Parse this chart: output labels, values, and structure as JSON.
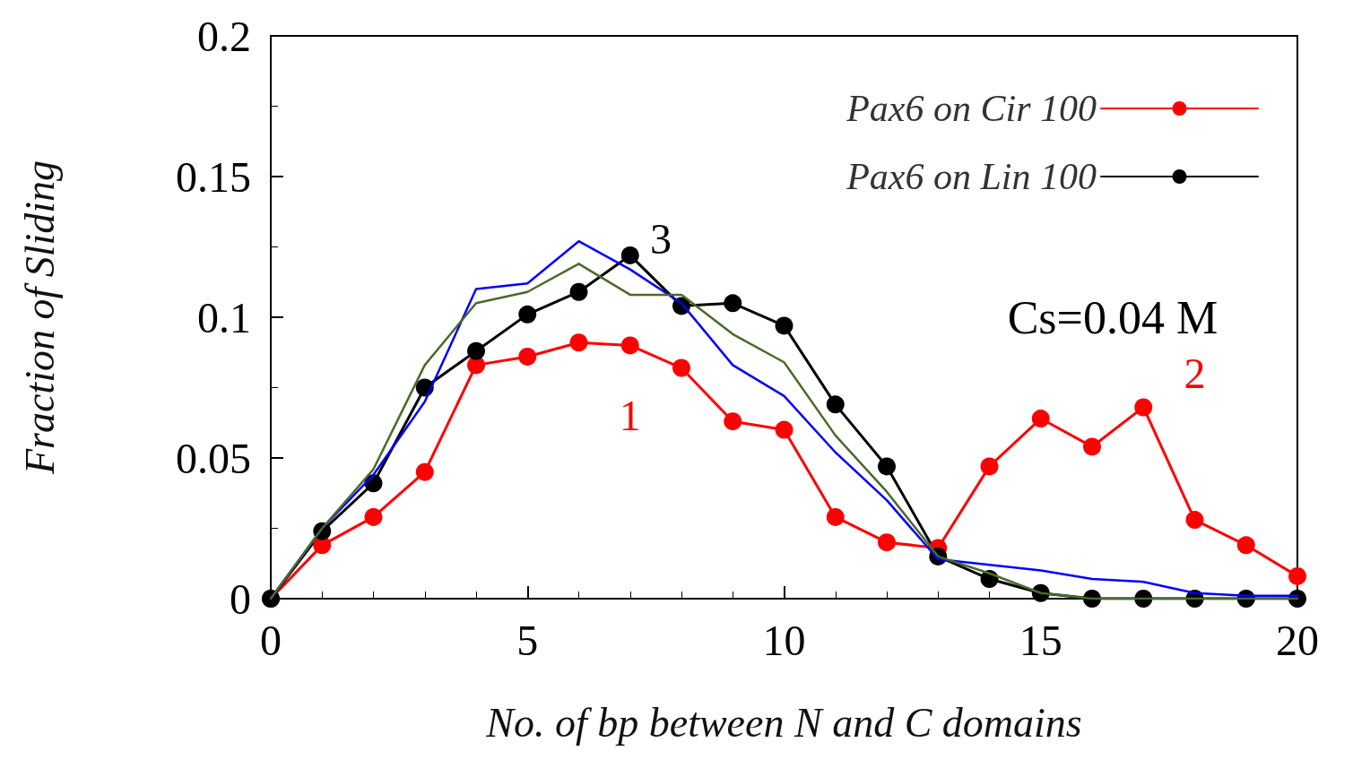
{
  "chart_data": {
    "type": "line",
    "xlabel": "No. of bp between N and C domains",
    "ylabel": "Fraction of Sliding",
    "x": [
      0,
      1,
      2,
      3,
      4,
      5,
      6,
      7,
      8,
      9,
      10,
      11,
      12,
      13,
      14,
      15,
      16,
      17,
      18,
      19,
      20
    ],
    "series": [
      {
        "name": "Pax6 on Cir 100",
        "color": "#ff0000",
        "marker": "circle",
        "values": [
          0,
          0.019,
          0.029,
          0.045,
          0.083,
          0.086,
          0.091,
          0.09,
          0.082,
          0.063,
          0.06,
          0.029,
          0.02,
          0.018,
          0.047,
          0.064,
          0.054,
          0.068,
          0.028,
          0.019,
          0.008
        ]
      },
      {
        "name": "Pax6 on Lin 100",
        "color": "#000000",
        "marker": "circle",
        "values": [
          0,
          0.024,
          0.041,
          0.075,
          0.088,
          0.101,
          0.109,
          0.122,
          0.104,
          0.105,
          0.097,
          0.069,
          0.047,
          0.015,
          0.007,
          0.002,
          0,
          0,
          0,
          0,
          0
        ]
      },
      {
        "color": "#0000ff",
        "marker": "none",
        "values": [
          0,
          0.025,
          0.044,
          0.07,
          0.11,
          0.112,
          0.127,
          0.117,
          0.105,
          0.083,
          0.072,
          0.052,
          0.035,
          0.014,
          0.012,
          0.01,
          0.007,
          0.006,
          0.002,
          0.001,
          0.001
        ]
      },
      {
        "color": "#4a6a2a",
        "marker": "none",
        "values": [
          0,
          0.025,
          0.046,
          0.083,
          0.105,
          0.109,
          0.119,
          0.108,
          0.108,
          0.094,
          0.084,
          0.058,
          0.038,
          0.015,
          0.009,
          0.002,
          0,
          0,
          0,
          0,
          0
        ]
      }
    ],
    "xlim": [
      0,
      20
    ],
    "xticks": [
      0,
      5,
      10,
      15,
      20
    ],
    "ylim": [
      0,
      0.2
    ],
    "yticks": [
      0,
      0.05,
      0.1,
      0.15,
      0.2
    ],
    "grid": false,
    "legend": "top right",
    "line_style": "solid",
    "annotations": [
      "1",
      "2",
      "3",
      "Cs=0.04 M"
    ]
  }
}
